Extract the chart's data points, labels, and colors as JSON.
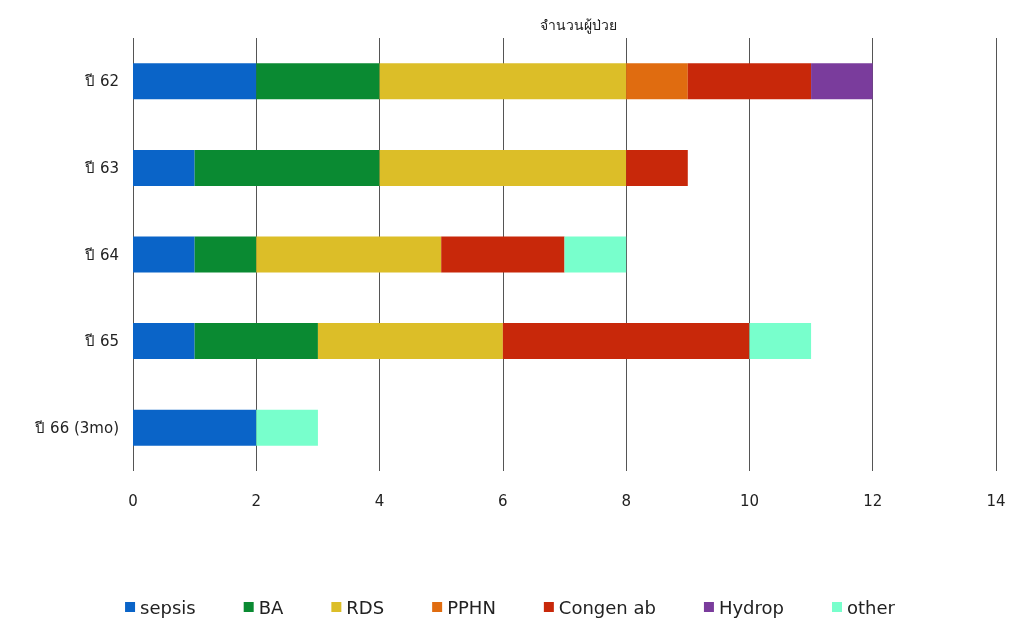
{
  "chart_data": {
    "type": "bar",
    "orientation": "horizontal",
    "stacked": true,
    "title": "จำนวนผู้ป่วย",
    "categories": [
      "ปี 62",
      "ปี 63",
      "ปี 64",
      "ปี 65",
      "ปี 66 (3mo)"
    ],
    "series": [
      {
        "name": "sepsis",
        "color": "#0a64c8",
        "values": [
          2,
          1,
          1,
          1,
          2
        ]
      },
      {
        "name": "BA",
        "color": "#0a8a32",
        "values": [
          2,
          3,
          1,
          2,
          null
        ]
      },
      {
        "name": "RDS",
        "color": "#dcbe28",
        "values": [
          4,
          4,
          3,
          3,
          null
        ]
      },
      {
        "name": "PPHN",
        "color": "#e06c10",
        "values": [
          1,
          null,
          null,
          null,
          null
        ]
      },
      {
        "name": "Congen ab",
        "color": "#c8280a",
        "values": [
          2,
          1,
          2,
          4,
          null
        ]
      },
      {
        "name": "Hydrop",
        "color": "#7a3c9c",
        "values": [
          1,
          null,
          null,
          null,
          null
        ]
      },
      {
        "name": "other",
        "color": "#78ffcc",
        "values": [
          null,
          null,
          1,
          1,
          1
        ]
      }
    ],
    "xlim": [
      0,
      14
    ],
    "xticks": [
      0,
      2,
      4,
      6,
      8,
      10,
      12,
      14
    ],
    "grid": "x",
    "legend": "bottom"
  }
}
